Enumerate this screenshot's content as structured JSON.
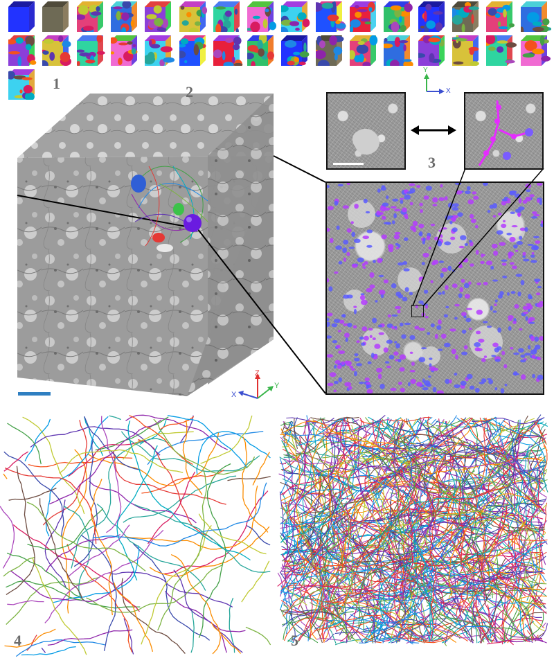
{
  "panels": {
    "p1": {
      "label": "1"
    },
    "p2": {
      "label": "2"
    },
    "p3": {
      "label": "3"
    },
    "p4": {
      "label": "4"
    },
    "p5": {
      "label": "5"
    }
  },
  "axes_main": {
    "z": "Z",
    "y": "Y",
    "x": "X",
    "colors": {
      "z": "#e03030",
      "y": "#39b54a",
      "x": "#3b4fd0"
    }
  },
  "axes_inset": {
    "y": "Y",
    "x": "X",
    "colors": {
      "y": "#39b54a",
      "x": "#3b4fd0"
    }
  },
  "mini_cubes": {
    "count": 33,
    "palettes": [
      [
        "#2233ff",
        "#2a2ad0",
        "#1a1aa0"
      ],
      [
        "#6e6a55",
        "#8b7d60",
        "#4f4a3a"
      ],
      [
        "#e4407a",
        "#38c96a",
        "#e3b232"
      ],
      [
        "#2f6de0",
        "#f28b2d",
        "#4bd0d8"
      ],
      [
        "#8b3fd9",
        "#3ad45a",
        "#e24040"
      ],
      [
        "#d8c23a",
        "#4068f0",
        "#c43fc4"
      ],
      [
        "#2fd5a0",
        "#e0474f",
        "#4a7bf2"
      ],
      [
        "#f06ad2",
        "#6d42e0",
        "#53c43f"
      ],
      [
        "#3dd2f0",
        "#e2a93b",
        "#a23de0"
      ],
      [
        "#1f51ff",
        "#f0f040",
        "#e03a8a"
      ],
      [
        "#e8203b",
        "#49d2f0",
        "#9b3de2"
      ],
      [
        "#30c06a",
        "#f07d2b",
        "#2f3fe8"
      ]
    ]
  },
  "neurite_colors": [
    "#e53935",
    "#fb8c00",
    "#43a047",
    "#1e88e5",
    "#8e24aa",
    "#00acc1",
    "#3949ab",
    "#7cb342",
    "#d81b60",
    "#5e35b1",
    "#26a69a",
    "#f4511e",
    "#6d4c41",
    "#c0ca33",
    "#039be5",
    "#ab47bc"
  ],
  "scalebar_color": "#2f7fc1"
}
